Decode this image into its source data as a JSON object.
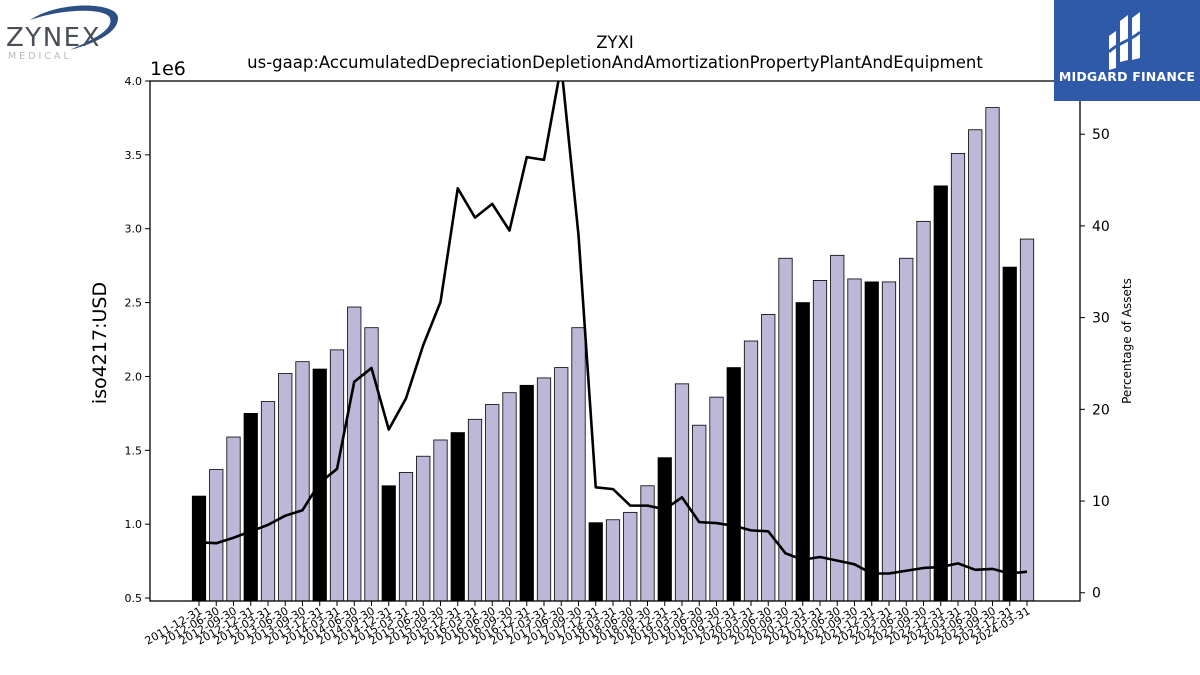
{
  "logos": {
    "zynex": {
      "name": "ZYNEX",
      "sub": "MEDICAL"
    },
    "midgard": {
      "name": "MIDGARD FINANCE"
    }
  },
  "chart_data": {
    "type": "bar",
    "title": "ZYXI",
    "subtitle": "us-gaap:AccumulatedDepreciationDepletionAndAmortizationPropertyPlantAndEquipment",
    "ylabel": "iso4217:USD",
    "y2label": "Percentage of Assets",
    "offset_text": "1e6",
    "ylim": [
      0.48,
      4.0
    ],
    "y2lim": [
      -0.9,
      55.8
    ],
    "yticks": [
      "0.5",
      "1.0",
      "1.5",
      "2.0",
      "2.5",
      "3.0",
      "3.5",
      "4.0"
    ],
    "y2ticks": [
      "0",
      "10",
      "20",
      "30",
      "40",
      "50"
    ],
    "grid": false,
    "categories": [
      "2011-12-31",
      "2012-06-30",
      "2012-09-30",
      "2012-12-31",
      "2013-03-31",
      "2013-06-30",
      "2013-09-30",
      "2013-12-31",
      "2014-03-31",
      "2014-06-30",
      "2014-09-30",
      "2014-12-31",
      "2015-03-31",
      "2015-06-30",
      "2015-09-30",
      "2015-12-31",
      "2016-03-31",
      "2016-06-30",
      "2016-09-30",
      "2016-12-31",
      "2017-03-31",
      "2017-06-30",
      "2017-09-30",
      "2017-12-31",
      "2018-03-31",
      "2018-06-30",
      "2018-09-30",
      "2018-12-31",
      "2019-03-31",
      "2019-06-30",
      "2019-09-30",
      "2019-12-31",
      "2020-03-31",
      "2020-06-30",
      "2020-09-30",
      "2020-12-31",
      "2021-03-31",
      "2021-06-30",
      "2021-09-30",
      "2021-12-31",
      "2022-03-31",
      "2022-06-30",
      "2022-09-30",
      "2022-12-31",
      "2023-03-31",
      "2023-06-30",
      "2023-09-30",
      "2023-12-31",
      "2024-03-31"
    ],
    "x_tick_labels": [
      "2011-12-31",
      "2012-06-30",
      "2012-09-30",
      "2012-12-31",
      "2013-03-31",
      "2013-06-30",
      "2013-09-30",
      "2013-12-31",
      "2014-03-31",
      "2014-06-30",
      "2014-09-30",
      "2014-12-31",
      "2015-03-31",
      "2015-06-30",
      "2015-09-30",
      "2015-12-31",
      "2016-03-31",
      "2016-06-30",
      "2016-09-30",
      "2016-12-31",
      "2017-03-31",
      "2017-06-30",
      "2017-09-30",
      "2017-12-31",
      "2018-03-31",
      "2018-06-30",
      "2018-09-30",
      "2018-12-31",
      "2019-03-31",
      "2019-06-30",
      "2019-09-30",
      "2019-12-31",
      "2020-03-31",
      "2020-06-30",
      "2020-09-30",
      "2020-12-31",
      "2021-03-31",
      "2021-06-30",
      "2021-09-30",
      "2021-12-31",
      "2022-03-31",
      "2022-06-30",
      "2022-09-30",
      "2022-12-31",
      "2023-03-31",
      "2023-06-30",
      "2023-09-30",
      "2023-12-31",
      "2024-03-31"
    ],
    "series": [
      {
        "values": [
          1.19,
          1.37,
          1.59,
          1.75,
          1.83,
          2.02,
          2.1,
          2.05,
          2.18,
          2.47,
          2.33,
          1.26,
          1.35,
          1.46,
          1.57,
          1.62,
          1.71,
          1.81,
          1.89,
          1.94,
          1.99,
          2.06,
          2.33,
          1.01,
          1.03,
          1.08,
          1.26,
          1.45,
          1.95,
          1.67,
          1.86,
          2.06,
          2.24,
          2.42,
          2.8,
          2.5,
          2.65,
          2.82,
          2.66,
          2.64,
          2.64,
          2.8,
          3.05,
          3.29,
          3.51,
          3.67,
          3.82,
          2.74,
          2.93
        ],
        "highlight": [
          true,
          false,
          false,
          true,
          false,
          false,
          false,
          true,
          false,
          false,
          false,
          true,
          false,
          false,
          false,
          true,
          false,
          false,
          false,
          true,
          false,
          false,
          false,
          true,
          false,
          false,
          false,
          true,
          false,
          false,
          false,
          true,
          false,
          false,
          false,
          true,
          false,
          false,
          false,
          true,
          false,
          false,
          false,
          true,
          false,
          false,
          false,
          true,
          false
        ]
      },
      {
        "axis": "right",
        "values": [
          5.5,
          5.4,
          6.0,
          6.7,
          7.4,
          8.4,
          9.0,
          12.0,
          13.5,
          23.0,
          24.5,
          17.8,
          21.2,
          27.0,
          31.7,
          44.1,
          40.9,
          42.4,
          39.5,
          47.5,
          47.2,
          57.5,
          39.0,
          11.5,
          11.3,
          9.5,
          9.5,
          9.1,
          10.4,
          7.7,
          7.6,
          7.3,
          6.8,
          6.7,
          4.3,
          3.6,
          3.9,
          3.5,
          3.1,
          2.1,
          2.1,
          2.4,
          2.7,
          2.8,
          3.2,
          2.5,
          2.6,
          2.1,
          2.3
        ]
      }
    ],
    "colors": {
      "bar_fill": "#bcb8d8",
      "bar_highlight": "#000000",
      "bar_edge": "#000000",
      "line": "#000000",
      "midgard_bg": "#2f5aa7",
      "zynex_text": "#4b4f5a",
      "zynex_swoosh": "#2c4f86"
    }
  }
}
